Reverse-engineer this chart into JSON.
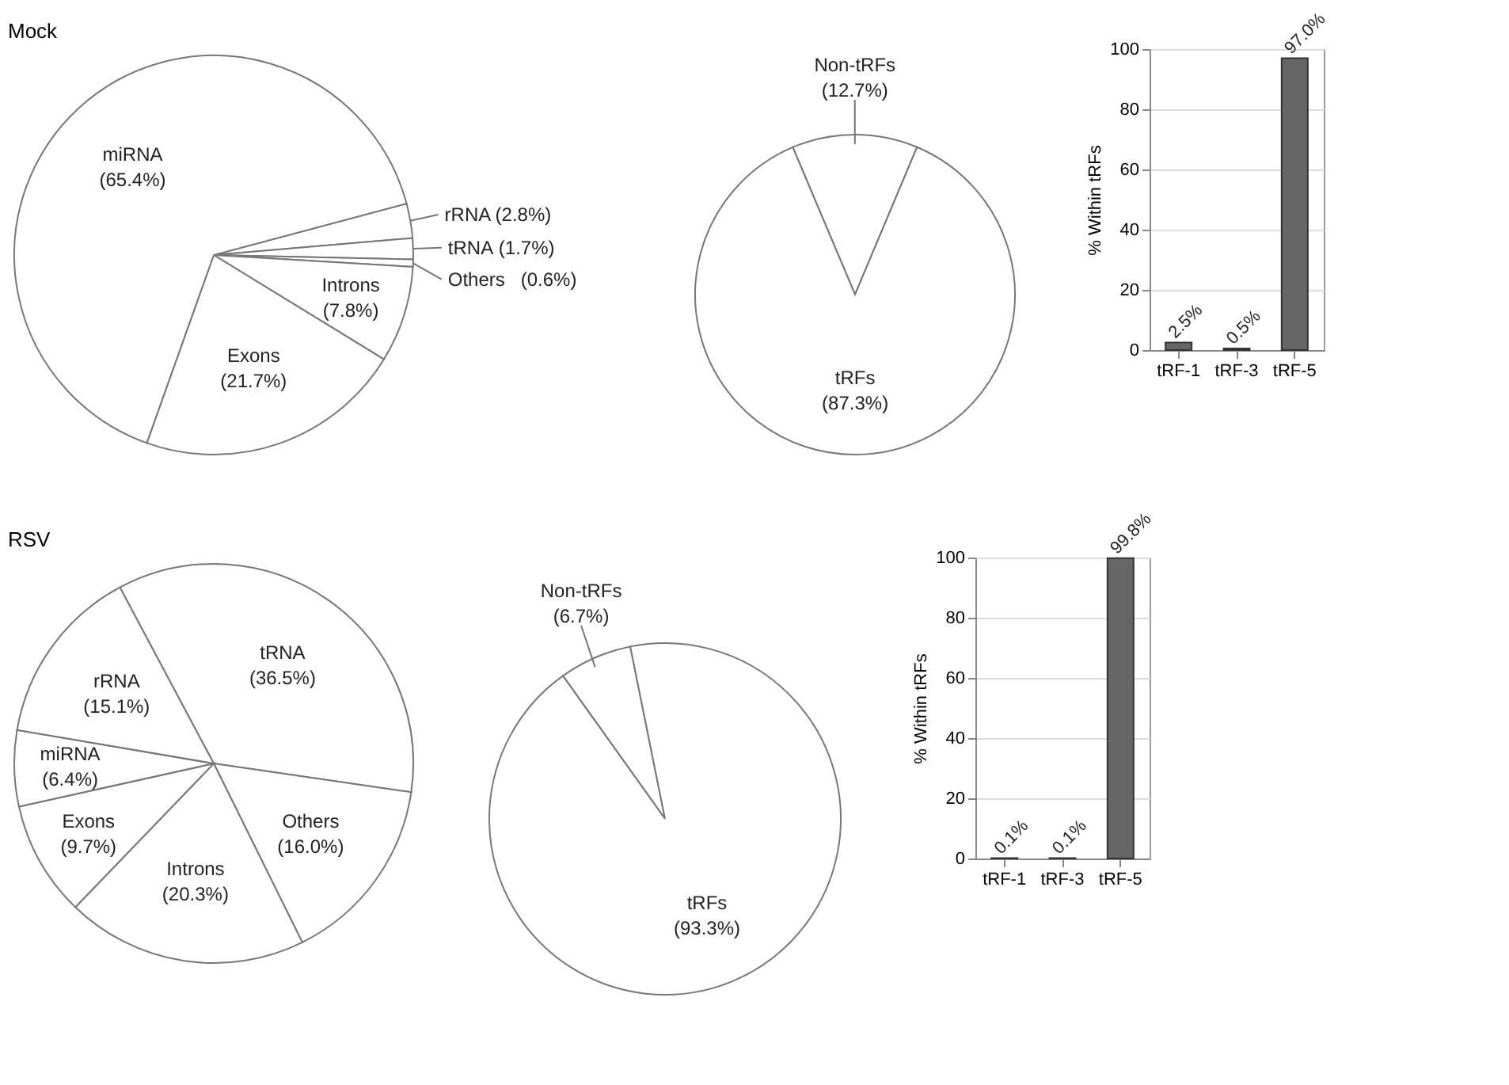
{
  "chart_data": [
    {
      "type": "pie",
      "title": "Mock",
      "categories": [
        "rRNA",
        "tRNA",
        "Others",
        "Introns",
        "Exons",
        "miRNA"
      ],
      "values": [
        2.8,
        1.7,
        0.6,
        7.8,
        21.7,
        65.4
      ],
      "value_labels": [
        "(2.8%)",
        "(1.7%)",
        "(0.6%)",
        "(7.8%)",
        "(21.7%)",
        "(65.4%)"
      ],
      "colors": [
        "#ffffff",
        "#ffffff",
        "#ffffff",
        "#ffffff",
        "#ffffff",
        "#ffffff"
      ]
    },
    {
      "type": "pie",
      "categories": [
        "Non-tRFs",
        "tRFs"
      ],
      "values": [
        12.7,
        87.3
      ],
      "value_labels": [
        "(12.7%)",
        "(87.3%)"
      ],
      "colors": [
        "#ffffff",
        "#ffffff"
      ]
    },
    {
      "type": "bar",
      "categories": [
        "tRF-1",
        "tRF-3",
        "tRF-5"
      ],
      "values": [
        2.5,
        0.5,
        97.0
      ],
      "value_labels": [
        "2.5%",
        "0.5%",
        "97.0%"
      ],
      "color": "#666666",
      "ylabel": "% Within tRFs",
      "ylim": [
        0,
        100
      ],
      "yticks": [
        0,
        20,
        40,
        60,
        80,
        100
      ],
      "grid": "y"
    },
    {
      "type": "pie",
      "title": "RSV",
      "categories": [
        "tRNA",
        "Others",
        "Introns",
        "Exons",
        "miRNA",
        "rRNA"
      ],
      "values": [
        36.5,
        16.0,
        20.3,
        9.7,
        6.4,
        15.1
      ],
      "value_labels": [
        "(36.5%)",
        "(16.0%)",
        "(20.3%)",
        "(9.7%)",
        "(6.4%)",
        "(15.1%)"
      ],
      "colors": [
        "#ffffff",
        "#ffffff",
        "#ffffff",
        "#ffffff",
        "#ffffff",
        "#ffffff"
      ]
    },
    {
      "type": "pie",
      "categories": [
        "Non-tRFs",
        "tRFs"
      ],
      "values": [
        6.7,
        93.3
      ],
      "value_labels": [
        "(6.7%)",
        "(93.3%)"
      ],
      "colors": [
        "#ffffff",
        "#ffffff"
      ]
    },
    {
      "type": "bar",
      "categories": [
        "tRF-1",
        "tRF-3",
        "tRF-5"
      ],
      "values": [
        0.1,
        0.1,
        99.8
      ],
      "value_labels": [
        "0.1%",
        "0.1%",
        "99.8%"
      ],
      "color": "#666666",
      "ylabel": "% Within tRFs",
      "ylim": [
        0,
        100
      ],
      "yticks": [
        0,
        20,
        40,
        60,
        80,
        100
      ],
      "grid": "y"
    }
  ]
}
